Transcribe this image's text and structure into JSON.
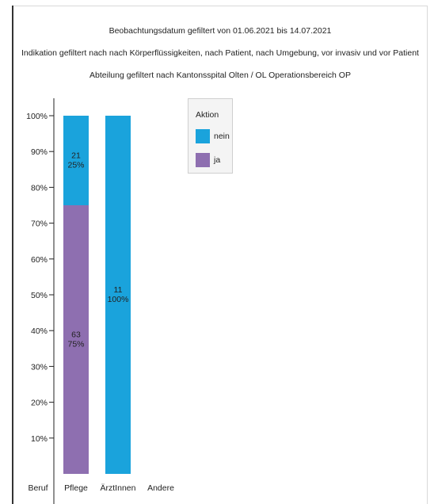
{
  "filters": [
    "Beobachtungsdatum gefiltert von 01.06.2021 bis 14.07.2021",
    "Indikation gefiltert nach nach Körperflüssigkeiten, nach Patient, nach Umgebung, vor invasiv und vor Patient",
    "Abteilung gefiltert nach Kantonsspital Olten / OL Operationsbereich OP"
  ],
  "legend": {
    "title": "Aktion",
    "items": [
      {
        "label": "nein",
        "color": "#1aa3dc"
      },
      {
        "label": "ja",
        "color": "#8e6fb0"
      }
    ]
  },
  "chart_data": {
    "type": "bar",
    "stacked": true,
    "xlabel": "Beruf",
    "categories": [
      "Pflege",
      "ÄrztInnen",
      "Andere"
    ],
    "ylim": [
      0,
      100
    ],
    "y_ticks": [
      "10%",
      "20%",
      "30%",
      "40%",
      "50%",
      "60%",
      "70%",
      "80%",
      "90%",
      "100%"
    ],
    "series": [
      {
        "name": "ja",
        "color": "#8e6fb0",
        "values": [
          75,
          0,
          0
        ],
        "counts": [
          63,
          0,
          0
        ],
        "labels": [
          "75%",
          "",
          ""
        ]
      },
      {
        "name": "nein",
        "color": "#1aa3dc",
        "values": [
          25,
          100,
          0
        ],
        "counts": [
          21,
          11,
          0
        ],
        "labels": [
          "25%",
          "100%",
          ""
        ]
      }
    ],
    "legend_position": "top-right",
    "grid": false
  }
}
